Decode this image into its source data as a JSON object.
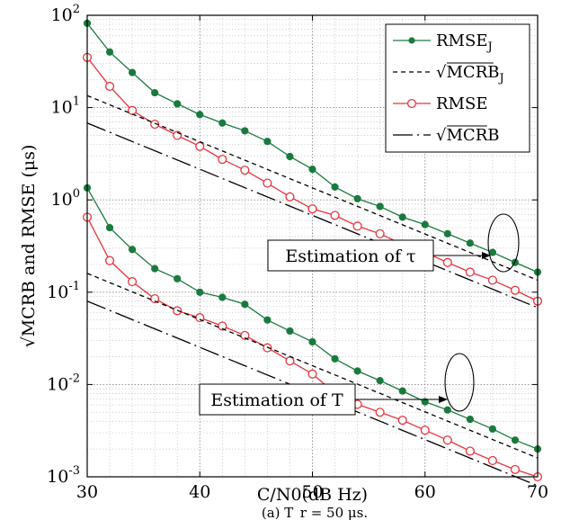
{
  "chart_data": {
    "type": "line",
    "caption": "(a) T_r = 50 μs.",
    "xlabel": "C/N0(dB Hz)",
    "ylabel": "√MCRB and RMSE (μs)",
    "xlim": [
      30,
      70
    ],
    "ylim": [
      0.001,
      100
    ],
    "yscale": "log",
    "grid": true,
    "x_ticks": [
      "30",
      "40",
      "50",
      "60",
      "70"
    ],
    "y_ticks": [
      {
        "base": "10",
        "exp": "-3"
      },
      {
        "base": "10",
        "exp": "-2"
      },
      {
        "base": "10",
        "exp": "-1"
      },
      {
        "base": "10",
        "exp": "0"
      },
      {
        "base": "10",
        "exp": "1"
      },
      {
        "base": "10",
        "exp": "2"
      }
    ],
    "legend_position": "top-right",
    "legend": [
      {
        "label": "RMSE_J",
        "style": "solid-dot",
        "color": "#1a7a3e"
      },
      {
        "label": "√MCRB_J",
        "style": "short-dash",
        "color": "#000000"
      },
      {
        "label": "RMSE",
        "style": "solid-circle",
        "color": "#e8343c"
      },
      {
        "label": "√MCRB",
        "style": "long-dash",
        "color": "#000000"
      }
    ],
    "annotations": [
      {
        "text": "Estimation of τ"
      },
      {
        "text": "Estimation of T"
      }
    ],
    "series": [
      {
        "name": "RMSE_J",
        "group": "tau",
        "style": "solid-dot",
        "color": "#1a7a3e",
        "x": [
          30,
          32,
          34,
          36,
          38,
          40,
          42,
          44,
          46,
          48,
          50,
          52,
          54,
          56,
          58,
          60,
          62,
          64,
          66,
          68,
          70
        ],
        "y": [
          82,
          40,
          24,
          14.5,
          11,
          8.4,
          6.8,
          5.6,
          4.3,
          2.95,
          2.15,
          1.38,
          1.03,
          0.85,
          0.65,
          0.54,
          0.43,
          0.34,
          0.27,
          0.21,
          0.165
        ]
      },
      {
        "name": "RMSE",
        "group": "tau",
        "style": "solid-circle",
        "color": "#e8343c",
        "x": [
          30,
          32,
          34,
          36,
          38,
          40,
          42,
          44,
          46,
          48,
          50,
          52,
          54,
          56,
          58,
          60,
          62,
          64,
          66,
          68,
          70
        ],
        "y": [
          35,
          17,
          9.3,
          6.6,
          5.0,
          3.8,
          2.75,
          2.1,
          1.52,
          1.08,
          0.8,
          0.68,
          0.52,
          0.43,
          0.33,
          0.27,
          0.21,
          0.165,
          0.135,
          0.105,
          0.08
        ]
      },
      {
        "name": "√MCRB_J",
        "group": "tau",
        "style": "short-dash",
        "color": "#000000",
        "x": [
          30,
          70
        ],
        "y": [
          13.5,
          0.135
        ]
      },
      {
        "name": "√MCRB",
        "group": "tau",
        "style": "long-dash",
        "color": "#000000",
        "x": [
          30,
          70
        ],
        "y": [
          6.8,
          0.068
        ]
      },
      {
        "name": "RMSE_J",
        "group": "T",
        "style": "solid-dot",
        "color": "#1a7a3e",
        "x": [
          30,
          32,
          34,
          36,
          38,
          40,
          42,
          44,
          46,
          48,
          50,
          52,
          54,
          56,
          58,
          60,
          62,
          64,
          66,
          68,
          70
        ],
        "y": [
          1.35,
          0.5,
          0.29,
          0.18,
          0.14,
          0.1,
          0.088,
          0.074,
          0.05,
          0.038,
          0.029,
          0.019,
          0.014,
          0.011,
          0.0085,
          0.0065,
          0.0053,
          0.0042,
          0.0033,
          0.0025,
          0.002
        ]
      },
      {
        "name": "RMSE",
        "group": "T",
        "style": "solid-circle",
        "color": "#e8343c",
        "x": [
          30,
          32,
          34,
          36,
          38,
          40,
          42,
          44,
          46,
          48,
          50,
          52,
          54,
          56,
          58,
          60,
          62,
          64,
          66,
          68,
          70
        ],
        "y": [
          0.65,
          0.22,
          0.13,
          0.085,
          0.063,
          0.053,
          0.043,
          0.034,
          0.025,
          0.018,
          0.013,
          0.0081,
          0.0061,
          0.005,
          0.0041,
          0.0032,
          0.0025,
          0.0019,
          0.0015,
          0.0012,
          0.001
        ]
      },
      {
        "name": "√MCRB_J",
        "group": "T",
        "style": "short-dash",
        "color": "#000000",
        "x": [
          30,
          70
        ],
        "y": [
          0.16,
          0.0016
        ]
      },
      {
        "name": "√MCRB",
        "group": "T",
        "style": "long-dash",
        "color": "#000000",
        "x": [
          30,
          70
        ],
        "y": [
          0.08,
          0.0008
        ]
      }
    ]
  }
}
